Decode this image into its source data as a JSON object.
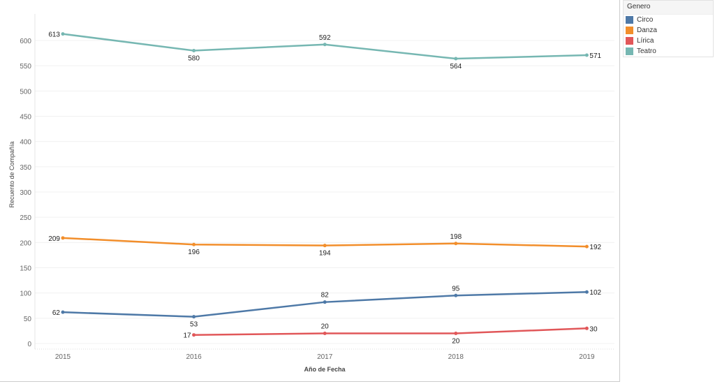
{
  "chart_data": {
    "type": "line",
    "title": "",
    "xlabel": "Año de Fecha",
    "ylabel": "Recuento de Compañía",
    "x": [
      "2015",
      "2016",
      "2017",
      "2018",
      "2019"
    ],
    "ylim": [
      0,
      640
    ],
    "yticks": [
      0,
      50,
      100,
      150,
      200,
      250,
      300,
      350,
      400,
      450,
      500,
      550,
      600
    ],
    "grid": true,
    "legend_title": "Genero",
    "legend_placement": "top-right",
    "series": [
      {
        "name": "Circo",
        "color": "#4e79a7",
        "values": [
          62,
          53,
          82,
          95,
          102
        ],
        "label_pos": [
          "left",
          "below",
          "above",
          "above",
          "right"
        ]
      },
      {
        "name": "Danza",
        "color": "#f28e2b",
        "values": [
          209,
          196,
          194,
          198,
          192
        ],
        "label_pos": [
          "left",
          "below",
          "below",
          "above",
          "right"
        ]
      },
      {
        "name": "Lírica",
        "color": "#e15759",
        "values": [
          null,
          17,
          20,
          20,
          30
        ],
        "label_pos": [
          null,
          "left",
          "above",
          "below",
          "right"
        ]
      },
      {
        "name": "Teatro",
        "color": "#76b7b2",
        "values": [
          613,
          580,
          592,
          564,
          571
        ],
        "label_pos": [
          "left",
          "below",
          "above",
          "below",
          "right"
        ]
      }
    ]
  }
}
